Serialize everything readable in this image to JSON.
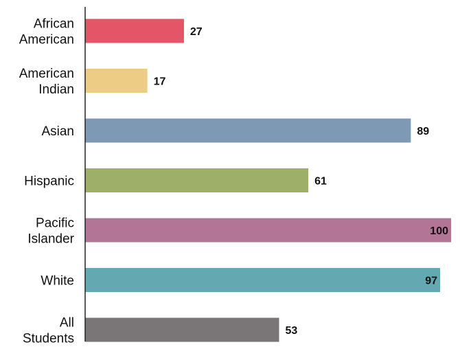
{
  "chart_data": {
    "type": "bar",
    "orientation": "horizontal",
    "title": "",
    "xlabel": "",
    "ylabel": "",
    "grid": false,
    "legend": "none",
    "xlim": [
      0,
      100
    ],
    "categories": [
      [
        "African",
        "American"
      ],
      [
        "American",
        "Indian"
      ],
      [
        "Asian"
      ],
      [
        "Hispanic"
      ],
      [
        "Pacific",
        "Islander"
      ],
      [
        "White"
      ],
      [
        "All",
        "Students"
      ]
    ],
    "values": [
      27,
      17,
      89,
      61,
      100,
      97,
      53
    ],
    "value_labels": [
      "27",
      "17",
      "89",
      "61",
      "100",
      "97",
      "53"
    ],
    "colors": [
      "#e35567",
      "#edcc86",
      "#7d99b4",
      "#9daf68",
      "#b27595",
      "#64a9b1",
      "#7a7677"
    ]
  }
}
